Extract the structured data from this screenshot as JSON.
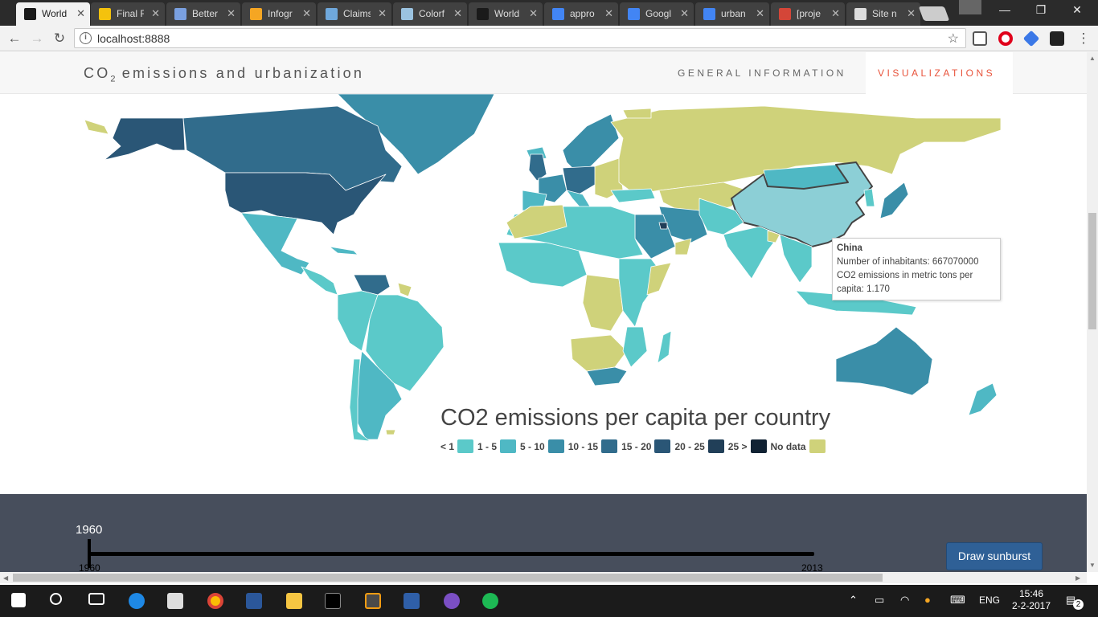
{
  "browser": {
    "tabs": [
      {
        "title": "World",
        "active": true,
        "icon_color": "#1a1a1a"
      },
      {
        "title": "Final F",
        "icon_color": "#f4c20d"
      },
      {
        "title": "Better",
        "icon_color": "#7aa0e0"
      },
      {
        "title": "Infogr",
        "icon_color": "#f5a623"
      },
      {
        "title": "Claims",
        "icon_color": "#6fa8dc"
      },
      {
        "title": "Colorf",
        "icon_color": "#9bc3e0"
      },
      {
        "title": "World",
        "icon_color": "#1a1a1a"
      },
      {
        "title": "appro",
        "icon_color": "#4285f4"
      },
      {
        "title": "Googl",
        "icon_color": "#4285f4"
      },
      {
        "title": "urban",
        "icon_color": "#4285f4"
      },
      {
        "title": "[proje",
        "icon_color": "#d44638"
      },
      {
        "title": "Site n",
        "icon_color": "#dddddd"
      }
    ],
    "url": "localhost:8888"
  },
  "site": {
    "title_prefix": "CO",
    "title_sub": "2",
    "title_suffix": " emissions and urbanization",
    "nav": {
      "general": "GENERAL INFORMATION",
      "visualizations": "VISUALIZATIONS"
    }
  },
  "map": {
    "title": "CO2 emissions per capita per country",
    "highlighted_country": "China",
    "tooltip": {
      "country": "China",
      "line1": "Number of inhabitants: 667070000",
      "line2": "CO2 emissions in metric tons per",
      "line3": "capita: 1.170"
    },
    "legend": [
      {
        "label": "< 1",
        "color": "#5bc9c9"
      },
      {
        "label": "1 - 5",
        "color": "#4fb8c4"
      },
      {
        "label": "5 - 10",
        "color": "#3a8ea8"
      },
      {
        "label": "10 - 15",
        "color": "#316c8c"
      },
      {
        "label": "15 - 20",
        "color": "#2a5676"
      },
      {
        "label": "20 - 25",
        "color": "#213f58"
      },
      {
        "label": "25 >",
        "color": "#112233"
      },
      {
        "label": "No data",
        "color": "#cfd27a"
      }
    ],
    "colors": {
      "china": "#8ccfd6",
      "lt1": "#5bc9c9",
      "lt5": "#4fb8c4",
      "lt10": "#3a8ea8",
      "lt15": "#316c8c",
      "lt20": "#2a5676",
      "lt25": "#213f58",
      "nodata": "#cfd27a"
    }
  },
  "timeline": {
    "current_year": "1960",
    "min_year": "1960",
    "max_year": "2013",
    "button_label": "Draw sunburst"
  },
  "taskbar": {
    "lang": "ENG",
    "time": "15:46",
    "date": "2-2-2017",
    "notifications": "2"
  }
}
